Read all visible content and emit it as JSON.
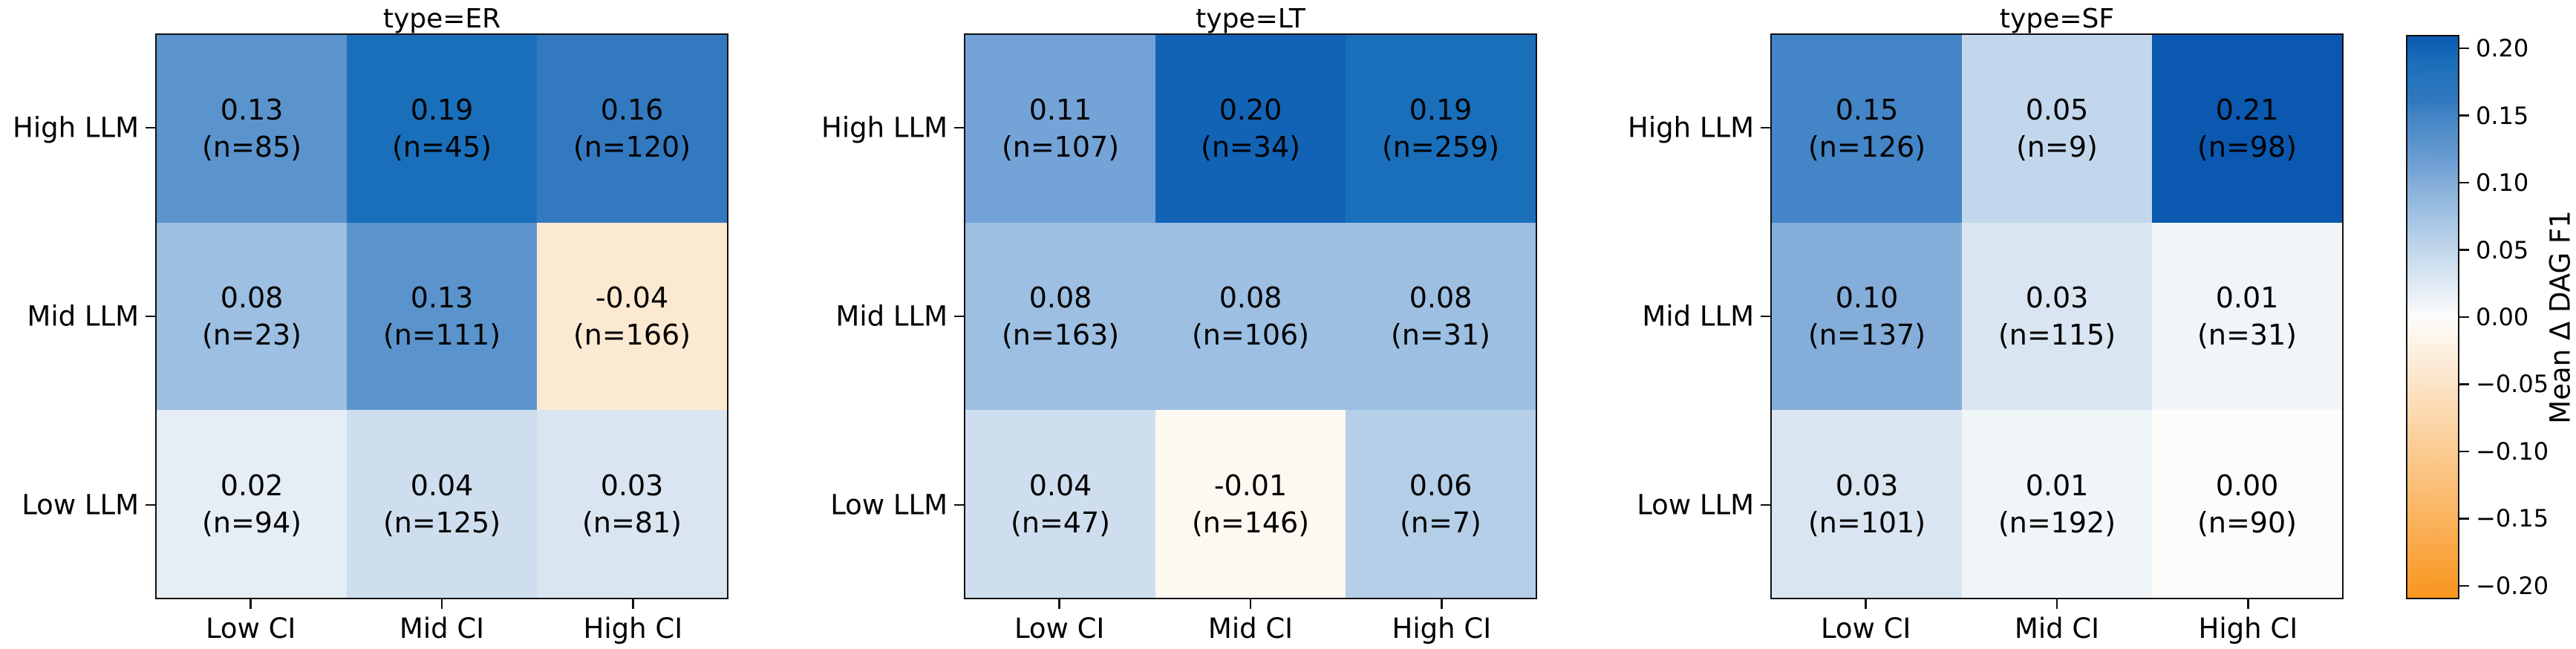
{
  "chart_data": {
    "type": "heatmap",
    "rows": [
      "High LLM",
      "Mid LLM",
      "Low LLM"
    ],
    "cols": [
      "Low CI",
      "Mid CI",
      "High CI"
    ],
    "panels": [
      {
        "title": "type=ER",
        "values": [
          [
            "0.13",
            "0.19",
            "0.16"
          ],
          [
            "0.08",
            "0.13",
            "-0.04"
          ],
          [
            "0.02",
            "0.04",
            "0.03"
          ]
        ],
        "n": [
          [
            85,
            45,
            120
          ],
          [
            23,
            111,
            166
          ],
          [
            94,
            125,
            81
          ]
        ]
      },
      {
        "title": "type=LT",
        "values": [
          [
            "0.11",
            "0.20",
            "0.19"
          ],
          [
            "0.08",
            "0.08",
            "0.08"
          ],
          [
            "0.04",
            "-0.01",
            "0.06"
          ]
        ],
        "n": [
          [
            107,
            34,
            259
          ],
          [
            163,
            106,
            31
          ],
          [
            47,
            146,
            7
          ]
        ]
      },
      {
        "title": "type=SF",
        "values": [
          [
            "0.15",
            "0.05",
            "0.21"
          ],
          [
            "0.10",
            "0.03",
            "0.01"
          ],
          [
            "0.03",
            "0.01",
            "0.00"
          ]
        ],
        "n": [
          [
            126,
            9,
            98
          ],
          [
            137,
            115,
            31
          ],
          [
            101,
            192,
            90
          ]
        ]
      }
    ],
    "colorbar": {
      "label": "Mean Δ DAG F1",
      "tick_labels": [
        "0.20",
        "0.15",
        "0.10",
        "0.05",
        "0.00",
        "−0.05",
        "−0.10",
        "−0.15",
        "−0.20"
      ],
      "tick_values": [
        0.2,
        0.15,
        0.1,
        0.05,
        0.0,
        -0.05,
        -0.1,
        -0.15,
        -0.2
      ],
      "vmin": -0.21,
      "vmax": 0.21
    },
    "colormap_anchors": [
      [
        -0.21,
        "#f9961f"
      ],
      [
        -0.04,
        "#fce9d1"
      ],
      [
        -0.01,
        "#fdf8f0"
      ],
      [
        0.0,
        "#fcfcfb"
      ],
      [
        0.05,
        "#c2d7eb"
      ],
      [
        0.08,
        "#9cbfe2"
      ],
      [
        0.1,
        "#84add9"
      ],
      [
        0.11,
        "#74a3d7"
      ],
      [
        0.13,
        "#5b94cc"
      ],
      [
        0.15,
        "#4385c6"
      ],
      [
        0.16,
        "#3379bf"
      ],
      [
        0.19,
        "#1a6fba"
      ],
      [
        0.21,
        "#0a58b0"
      ]
    ]
  }
}
